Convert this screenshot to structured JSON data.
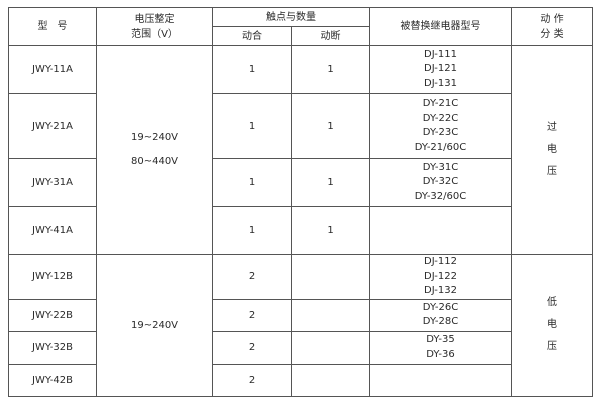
{
  "headers": {
    "model": "型　号",
    "voltage_range": [
      "电压整定",
      "范围（V）"
    ],
    "contacts": "触点与数量",
    "contact_make": "动合",
    "contact_break": "动断",
    "replaced_relay": "被替换继电器型号",
    "action_class": [
      "动 作",
      "分 类"
    ]
  },
  "groups": [
    {
      "voltage": [
        "19~240V",
        "80~440V"
      ],
      "class": [
        "过",
        "电",
        "压"
      ]
    },
    {
      "voltage": [
        "19~240V"
      ],
      "class": [
        "低",
        "电",
        "压"
      ]
    }
  ],
  "rows": [
    {
      "model": "JWY-11A",
      "make": "1",
      "break": "1",
      "replaced": [
        "DJ-111",
        "DJ-121",
        "DJ-131"
      ]
    },
    {
      "model": "JWY-21A",
      "make": "1",
      "break": "1",
      "replaced": [
        "DY-21C",
        "DY-22C",
        "DY-23C",
        "DY-21/60C"
      ]
    },
    {
      "model": "JWY-31A",
      "make": "1",
      "break": "1",
      "replaced": [
        "DY-31C",
        "DY-32C",
        "DY-32/60C"
      ]
    },
    {
      "model": "JWY-41A",
      "make": "1",
      "break": "1",
      "replaced": []
    },
    {
      "model": "JWY-12B",
      "make": "2",
      "break": "",
      "replaced": [
        "DJ-112",
        "DJ-122",
        "DJ-132"
      ]
    },
    {
      "model": "JWY-22B",
      "make": "2",
      "break": "",
      "replaced": [
        "DY-26C",
        "DY-28C"
      ]
    },
    {
      "model": "JWY-32B",
      "make": "2",
      "break": "",
      "replaced": [
        "DY-35",
        "DY-36"
      ]
    },
    {
      "model": "JWY-42B",
      "make": "2",
      "break": "",
      "replaced": []
    }
  ]
}
